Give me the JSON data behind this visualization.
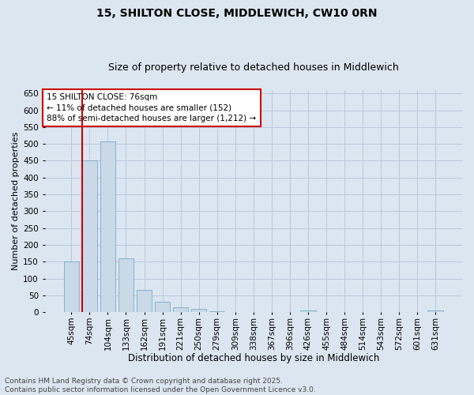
{
  "title1": "15, SHILTON CLOSE, MIDDLEWICH, CW10 0RN",
  "title2": "Size of property relative to detached houses in Middlewich",
  "xlabel": "Distribution of detached houses by size in Middlewich",
  "ylabel": "Number of detached properties",
  "categories": [
    "45sqm",
    "74sqm",
    "104sqm",
    "133sqm",
    "162sqm",
    "191sqm",
    "221sqm",
    "250sqm",
    "279sqm",
    "309sqm",
    "338sqm",
    "367sqm",
    "396sqm",
    "426sqm",
    "455sqm",
    "484sqm",
    "514sqm",
    "543sqm",
    "572sqm",
    "601sqm",
    "631sqm"
  ],
  "values": [
    150,
    452,
    507,
    160,
    67,
    30,
    15,
    9,
    3,
    0,
    0,
    0,
    0,
    5,
    0,
    0,
    0,
    0,
    0,
    0,
    5
  ],
  "bar_color": "#c9d9e8",
  "bar_edge_color": "#7aaac8",
  "grid_color": "#b8c8dc",
  "background_color": "#dce6f0",
  "vline_x": 0.57,
  "vline_color": "#cc0000",
  "annotation_text": "15 SHILTON CLOSE: 76sqm\n← 11% of detached houses are smaller (152)\n88% of semi-detached houses are larger (1,212) →",
  "annotation_box_color": "#ffffff",
  "annotation_box_edge": "#cc0000",
  "ylim": [
    0,
    660
  ],
  "yticks": [
    0,
    50,
    100,
    150,
    200,
    250,
    300,
    350,
    400,
    450,
    500,
    550,
    600,
    650
  ],
  "footnote": "Contains HM Land Registry data © Crown copyright and database right 2025.\nContains public sector information licensed under the Open Government Licence v3.0.",
  "title1_fontsize": 10,
  "title2_fontsize": 9,
  "xlabel_fontsize": 8.5,
  "ylabel_fontsize": 8,
  "tick_fontsize": 7.5,
  "annot_fontsize": 7.5,
  "footnote_fontsize": 6.5
}
